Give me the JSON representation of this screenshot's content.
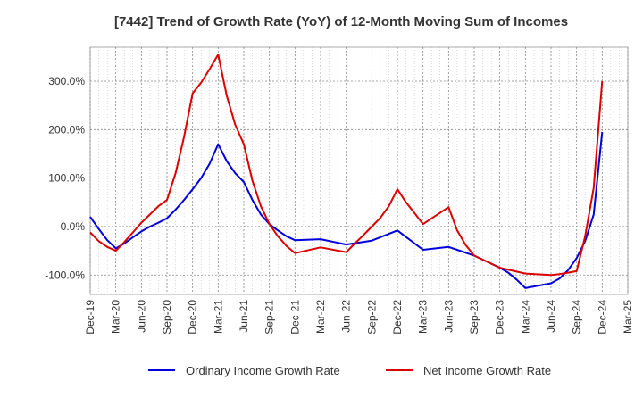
{
  "chart_data": {
    "type": "line",
    "title": "[7442]  Trend of Growth Rate (YoY) of 12-Month Moving Sum of Incomes",
    "xlabel": "",
    "ylabel": "",
    "ylim": [
      -140,
      370
    ],
    "y_ticks": [
      {
        "value": 300,
        "label": "300.0%"
      },
      {
        "value": 200,
        "label": "200.0%"
      },
      {
        "value": 100,
        "label": "100.0%"
      },
      {
        "value": 0,
        "label": "0.0%"
      },
      {
        "value": -100,
        "label": "-100.0%"
      }
    ],
    "x_range": [
      "2019-12",
      "2025-03"
    ],
    "x_ticks": [
      "Dec-19",
      "Mar-20",
      "Jun-20",
      "Sep-20",
      "Dec-20",
      "Mar-21",
      "Jun-21",
      "Sep-21",
      "Dec-21",
      "Mar-22",
      "Jun-22",
      "Sep-22",
      "Dec-22",
      "Mar-23",
      "Jun-23",
      "Sep-23",
      "Dec-23",
      "Mar-24",
      "Jun-24",
      "Sep-24",
      "Dec-24",
      "Mar-25"
    ],
    "grid": true,
    "legend_position": "bottom",
    "series": [
      {
        "name": "Ordinary Income Growth Rate",
        "color": "#0000dd",
        "points": [
          [
            "2019-12",
            20
          ],
          [
            "2020-01",
            -5
          ],
          [
            "2020-02",
            -28
          ],
          [
            "2020-03",
            -45
          ],
          [
            "2020-04",
            -35
          ],
          [
            "2020-05",
            -22
          ],
          [
            "2020-06",
            -10
          ],
          [
            "2020-07",
            0
          ],
          [
            "2020-08",
            8
          ],
          [
            "2020-09",
            17
          ],
          [
            "2020-10",
            35
          ],
          [
            "2020-11",
            55
          ],
          [
            "2020-12",
            77
          ],
          [
            "2021-01",
            100
          ],
          [
            "2021-02",
            130
          ],
          [
            "2021-03",
            170
          ],
          [
            "2021-04",
            135
          ],
          [
            "2021-05",
            110
          ],
          [
            "2021-06",
            92
          ],
          [
            "2021-07",
            55
          ],
          [
            "2021-08",
            25
          ],
          [
            "2021-09",
            5
          ],
          [
            "2021-10",
            -8
          ],
          [
            "2021-11",
            -20
          ],
          [
            "2021-12",
            -28
          ],
          [
            "2022-03",
            -26
          ],
          [
            "2022-06",
            -37
          ],
          [
            "2022-09",
            -29
          ],
          [
            "2022-12",
            -8
          ],
          [
            "2023-03",
            -48
          ],
          [
            "2023-06",
            -42
          ],
          [
            "2023-09",
            -60
          ],
          [
            "2023-12",
            -85
          ],
          [
            "2024-01",
            -95
          ],
          [
            "2024-02",
            -110
          ],
          [
            "2024-03",
            -127
          ],
          [
            "2024-06",
            -117
          ],
          [
            "2024-07",
            -107
          ],
          [
            "2024-08",
            -90
          ],
          [
            "2024-09",
            -65
          ],
          [
            "2024-10",
            -30
          ],
          [
            "2024-11",
            25
          ],
          [
            "2024-12",
            195
          ]
        ]
      },
      {
        "name": "Net Income Growth Rate",
        "color": "#dd0000",
        "points": [
          [
            "2019-12",
            -12
          ],
          [
            "2020-01",
            -30
          ],
          [
            "2020-02",
            -42
          ],
          [
            "2020-03",
            -50
          ],
          [
            "2020-04",
            -32
          ],
          [
            "2020-05",
            -12
          ],
          [
            "2020-06",
            8
          ],
          [
            "2020-07",
            25
          ],
          [
            "2020-08",
            42
          ],
          [
            "2020-09",
            55
          ],
          [
            "2020-10",
            110
          ],
          [
            "2020-11",
            185
          ],
          [
            "2020-12",
            275
          ],
          [
            "2021-01",
            297
          ],
          [
            "2021-02",
            325
          ],
          [
            "2021-03",
            355
          ],
          [
            "2021-04",
            270
          ],
          [
            "2021-05",
            210
          ],
          [
            "2021-06",
            170
          ],
          [
            "2021-07",
            95
          ],
          [
            "2021-08",
            42
          ],
          [
            "2021-09",
            5
          ],
          [
            "2021-10",
            -20
          ],
          [
            "2021-11",
            -40
          ],
          [
            "2021-12",
            -55
          ],
          [
            "2022-03",
            -43
          ],
          [
            "2022-06",
            -53
          ],
          [
            "2022-07",
            -35
          ],
          [
            "2022-08",
            -18
          ],
          [
            "2022-09",
            0
          ],
          [
            "2022-10",
            18
          ],
          [
            "2022-11",
            42
          ],
          [
            "2022-12",
            77
          ],
          [
            "2023-01",
            50
          ],
          [
            "2023-02",
            28
          ],
          [
            "2023-03",
            5
          ],
          [
            "2023-06",
            40
          ],
          [
            "2023-07",
            -8
          ],
          [
            "2023-08",
            -38
          ],
          [
            "2023-09",
            -60
          ],
          [
            "2023-12",
            -85
          ],
          [
            "2024-03",
            -97
          ],
          [
            "2024-06",
            -100
          ],
          [
            "2024-07",
            -98
          ],
          [
            "2024-08",
            -95
          ],
          [
            "2024-09",
            -92
          ],
          [
            "2024-10",
            -20
          ],
          [
            "2024-11",
            80
          ],
          [
            "2024-12",
            300
          ]
        ]
      }
    ]
  }
}
